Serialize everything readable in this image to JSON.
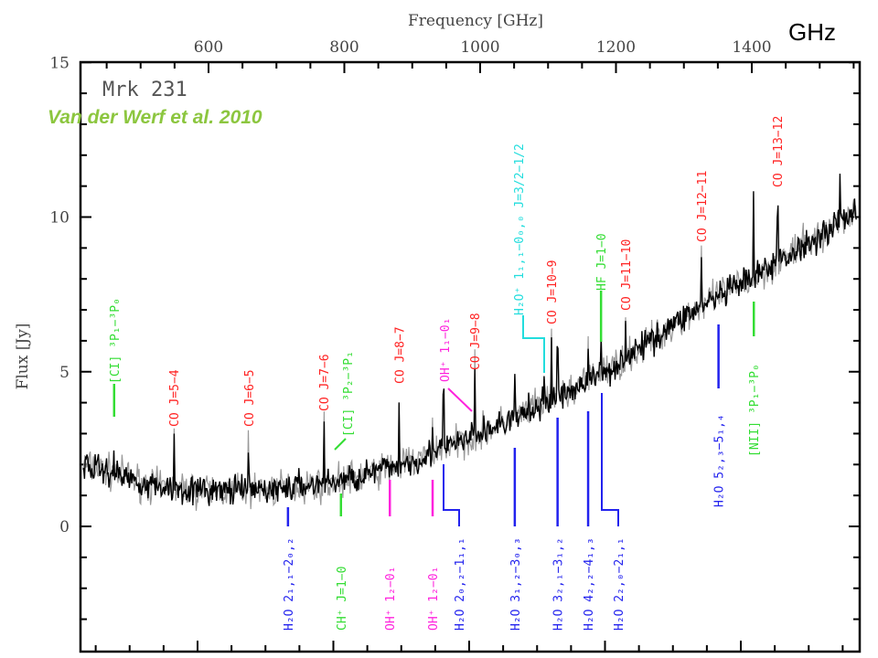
{
  "annotations": {
    "object": "Mrk 231",
    "citation": "Van der Werf et al. 2010",
    "unit_note": "GHz"
  },
  "chart_data": {
    "type": "line",
    "title": "",
    "xlabel": "Frequency [GHz]",
    "ylabel": "Flux [Jy]",
    "xlim": [
      411,
      1559
    ],
    "ylim": [
      -4,
      15
    ],
    "xticks": [
      600,
      800,
      1000,
      1200,
      1400
    ],
    "yticks": [
      0,
      5,
      10,
      15
    ],
    "grid": false,
    "continuum": [
      [
        411,
        2.0
      ],
      [
        450,
        1.8
      ],
      [
        520,
        1.3
      ],
      [
        600,
        1.15
      ],
      [
        700,
        1.2
      ],
      [
        800,
        1.5
      ],
      [
        900,
        2.1
      ],
      [
        1000,
        3.0
      ],
      [
        1100,
        4.0
      ],
      [
        1200,
        5.2
      ],
      [
        1300,
        6.8
      ],
      [
        1400,
        8.0
      ],
      [
        1500,
        9.4
      ],
      [
        1555,
        10.3
      ]
    ],
    "line_peaks": [
      [
        461,
        0.8
      ],
      [
        549,
        1.6
      ],
      [
        659,
        1.4
      ],
      [
        770,
        1.9
      ],
      [
        881,
        2.2
      ],
      [
        930,
        1.2
      ],
      [
        946,
        1.7
      ],
      [
        992,
        2.3
      ],
      [
        1051,
        1.0
      ],
      [
        1094,
        1.0
      ],
      [
        1105,
        2.3
      ],
      [
        1114,
        1.6
      ],
      [
        1159,
        1.3
      ],
      [
        1178,
        1.2
      ],
      [
        1214,
        1.6
      ],
      [
        1326,
        1.7
      ],
      [
        1403,
        2.4
      ],
      [
        1438,
        1.8
      ],
      [
        1530,
        1.3
      ]
    ],
    "line_labels": [
      {
        "text": "[CI] ³P₁−³P₀",
        "freq": 461,
        "color": "#33dd33",
        "pos": "upper"
      },
      {
        "text": "CO J=5−4",
        "freq": 549,
        "color": "#ff2222",
        "pos": "upper"
      },
      {
        "text": "CO J=6−5",
        "freq": 659,
        "color": "#ff2222",
        "pos": "upper"
      },
      {
        "text": "CO J=7−6",
        "freq": 770,
        "color": "#ff2222",
        "pos": "upper"
      },
      {
        "text": "[CI] ³P₂−³P₁",
        "freq": 784,
        "color": "#33dd33",
        "pos": "upper"
      },
      {
        "text": "CO J=8−7",
        "freq": 881,
        "color": "#ff2222",
        "pos": "upper"
      },
      {
        "text": "OH⁺ 1₁−0₁",
        "freq": 946,
        "color": "#ff22dd",
        "pos": "upper"
      },
      {
        "text": "CO J=9−8",
        "freq": 992,
        "color": "#ff2222",
        "pos": "upper"
      },
      {
        "text": "H₂O⁺ 1₁,₁−0₀,₀ J=3/2−1/2",
        "freq": 1094,
        "color": "#22dddd",
        "pos": "upper"
      },
      {
        "text": "CO J=10−9",
        "freq": 1105,
        "color": "#ff2222",
        "pos": "upper"
      },
      {
        "text": "HF J=1−0",
        "freq": 1178,
        "color": "#33dd33",
        "pos": "upper"
      },
      {
        "text": "CO J=11−10",
        "freq": 1214,
        "color": "#ff2222",
        "pos": "upper"
      },
      {
        "text": "CO J=12−11",
        "freq": 1326,
        "color": "#ff2222",
        "pos": "upper"
      },
      {
        "text": "[NII] ³P₁−³P₀",
        "freq": 1403,
        "color": "#33dd33",
        "pos": "mid"
      },
      {
        "text": "CO J=13−12",
        "freq": 1438,
        "color": "#ff2222",
        "pos": "upper"
      },
      {
        "text": "H₂O 5₂,₃−5₁,₄",
        "freq": 1351,
        "color": "#2222ee",
        "pos": "mid"
      },
      {
        "text": "H₂O 2₁,₁−2₀,₂",
        "freq": 717,
        "color": "#2222ee",
        "pos": "lower"
      },
      {
        "text": "CH⁺ J=1−0",
        "freq": 795,
        "color": "#33dd33",
        "pos": "lower"
      },
      {
        "text": "OH⁺ 1₂−0₁",
        "freq": 867,
        "color": "#ff22dd",
        "pos": "lower"
      },
      {
        "text": "OH⁺ 1₂−0₁",
        "freq": 930,
        "color": "#ff22dd",
        "pos": "lower"
      },
      {
        "text": "H₂O 2₀,₂−1₁,₁",
        "freq": 969,
        "color": "#2222ee",
        "pos": "lower"
      },
      {
        "text": "H₂O 3₁,₂−3₀,₃",
        "freq": 1051,
        "color": "#2222ee",
        "pos": "lower"
      },
      {
        "text": "H₂O 3₂,₁−3₁,₂",
        "freq": 1114,
        "color": "#2222ee",
        "pos": "lower"
      },
      {
        "text": "H₂O 4₂,₂−4₁,₃",
        "freq": 1159,
        "color": "#2222ee",
        "pos": "lower"
      },
      {
        "text": "H₂O 2₂,₀−2₁,₁",
        "freq": 1203,
        "color": "#2222ee",
        "pos": "lower"
      }
    ]
  }
}
